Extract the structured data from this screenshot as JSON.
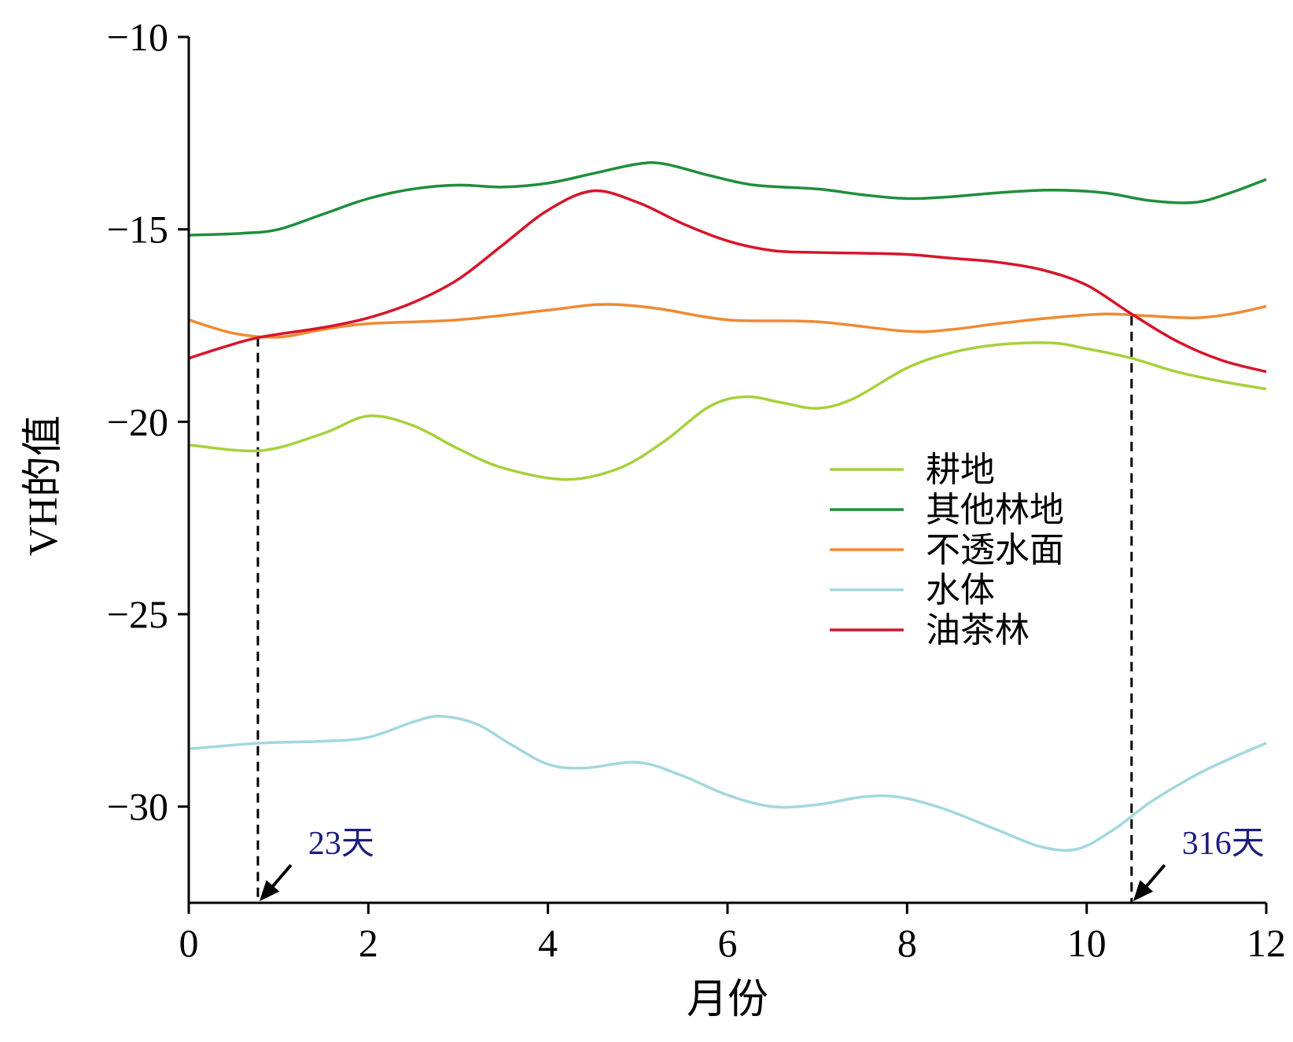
{
  "chart_data": {
    "type": "line",
    "xlabel": "月份",
    "ylabel": "VH的值",
    "xlim": [
      0,
      12
    ],
    "ylim": [
      -32.5,
      -10
    ],
    "xticks": [
      0,
      2,
      4,
      6,
      8,
      10,
      12
    ],
    "yticks": [
      -10,
      -15,
      -20,
      -25,
      -30
    ],
    "ytick_labels": [
      "−10",
      "−15",
      "−20",
      "−25",
      "−30"
    ],
    "grid": false,
    "legend_position": "center-right",
    "series": [
      {
        "name": "耕地",
        "color": "#a6d13c",
        "points": [
          [
            0,
            -20.6
          ],
          [
            0.8,
            -20.75
          ],
          [
            1.5,
            -20.3
          ],
          [
            2,
            -19.85
          ],
          [
            2.5,
            -20.1
          ],
          [
            3,
            -20.7
          ],
          [
            3.5,
            -21.2
          ],
          [
            4.2,
            -21.5
          ],
          [
            4.8,
            -21.2
          ],
          [
            5.3,
            -20.5
          ],
          [
            5.8,
            -19.6
          ],
          [
            6.2,
            -19.35
          ],
          [
            6.6,
            -19.5
          ],
          [
            7,
            -19.65
          ],
          [
            7.4,
            -19.4
          ],
          [
            8,
            -18.6
          ],
          [
            8.5,
            -18.2
          ],
          [
            9,
            -18
          ],
          [
            9.6,
            -17.95
          ],
          [
            10,
            -18.1
          ],
          [
            10.5,
            -18.35
          ],
          [
            11,
            -18.7
          ],
          [
            11.5,
            -18.95
          ],
          [
            12,
            -19.15
          ]
        ]
      },
      {
        "name": "其他林地",
        "color": "#1e8f3a",
        "points": [
          [
            0,
            -15.15
          ],
          [
            0.6,
            -15.1
          ],
          [
            1,
            -15
          ],
          [
            1.5,
            -14.6
          ],
          [
            2,
            -14.2
          ],
          [
            2.5,
            -13.95
          ],
          [
            3,
            -13.85
          ],
          [
            3.5,
            -13.9
          ],
          [
            4,
            -13.8
          ],
          [
            4.5,
            -13.55
          ],
          [
            5,
            -13.3
          ],
          [
            5.3,
            -13.3
          ],
          [
            5.8,
            -13.6
          ],
          [
            6.3,
            -13.85
          ],
          [
            7,
            -13.95
          ],
          [
            7.5,
            -14.1
          ],
          [
            8,
            -14.2
          ],
          [
            8.5,
            -14.15
          ],
          [
            9,
            -14.05
          ],
          [
            9.6,
            -13.98
          ],
          [
            10.2,
            -14.05
          ],
          [
            10.7,
            -14.25
          ],
          [
            11.2,
            -14.3
          ],
          [
            11.6,
            -14.05
          ],
          [
            12,
            -13.7
          ]
        ]
      },
      {
        "name": "不透水面",
        "color": "#f08a33",
        "points": [
          [
            0,
            -17.35
          ],
          [
            0.5,
            -17.7
          ],
          [
            1,
            -17.8
          ],
          [
            1.5,
            -17.6
          ],
          [
            2,
            -17.45
          ],
          [
            3,
            -17.35
          ],
          [
            4,
            -17.1
          ],
          [
            4.6,
            -16.95
          ],
          [
            5.2,
            -17.05
          ],
          [
            6,
            -17.35
          ],
          [
            7,
            -17.4
          ],
          [
            8,
            -17.65
          ],
          [
            8.5,
            -17.6
          ],
          [
            9,
            -17.45
          ],
          [
            9.6,
            -17.3
          ],
          [
            10.2,
            -17.2
          ],
          [
            10.7,
            -17.25
          ],
          [
            11.2,
            -17.3
          ],
          [
            11.6,
            -17.2
          ],
          [
            12,
            -17.0
          ]
        ]
      },
      {
        "name": "水体",
        "color": "#a2d8dd",
        "points": [
          [
            0,
            -28.5
          ],
          [
            0.8,
            -28.35
          ],
          [
            1.5,
            -28.3
          ],
          [
            2,
            -28.2
          ],
          [
            2.5,
            -27.8
          ],
          [
            2.8,
            -27.65
          ],
          [
            3.2,
            -27.85
          ],
          [
            3.6,
            -28.4
          ],
          [
            4,
            -28.9
          ],
          [
            4.4,
            -29.0
          ],
          [
            5,
            -28.85
          ],
          [
            5.5,
            -29.2
          ],
          [
            6,
            -29.7
          ],
          [
            6.5,
            -30
          ],
          [
            7,
            -29.95
          ],
          [
            7.5,
            -29.75
          ],
          [
            7.9,
            -29.75
          ],
          [
            8.4,
            -30.05
          ],
          [
            9,
            -30.6
          ],
          [
            9.5,
            -31.05
          ],
          [
            9.9,
            -31.1
          ],
          [
            10.3,
            -30.6
          ],
          [
            10.7,
            -29.9
          ],
          [
            11.2,
            -29.2
          ],
          [
            11.6,
            -28.75
          ],
          [
            12,
            -28.35
          ]
        ]
      },
      {
        "name": "油茶林",
        "color": "#d7152a",
        "points": [
          [
            0,
            -18.35
          ],
          [
            0.4,
            -18.05
          ],
          [
            0.8,
            -17.8
          ],
          [
            1.5,
            -17.55
          ],
          [
            2,
            -17.3
          ],
          [
            2.5,
            -16.9
          ],
          [
            3,
            -16.3
          ],
          [
            3.5,
            -15.4
          ],
          [
            4,
            -14.5
          ],
          [
            4.5,
            -14.0
          ],
          [
            5,
            -14.3
          ],
          [
            5.5,
            -14.85
          ],
          [
            6,
            -15.3
          ],
          [
            6.5,
            -15.55
          ],
          [
            7,
            -15.6
          ],
          [
            7.5,
            -15.62
          ],
          [
            8,
            -15.65
          ],
          [
            8.5,
            -15.75
          ],
          [
            9,
            -15.85
          ],
          [
            9.5,
            -16.05
          ],
          [
            10,
            -16.45
          ],
          [
            10.5,
            -17.2
          ],
          [
            11,
            -17.9
          ],
          [
            11.5,
            -18.4
          ],
          [
            12,
            -18.7
          ]
        ]
      }
    ],
    "annotations": [
      {
        "label": "23天",
        "x": 0.77,
        "y": -17.8
      },
      {
        "label": "316天",
        "x": 10.5,
        "y": -17.25
      }
    ],
    "annotation_color": "#1d1d7d"
  }
}
